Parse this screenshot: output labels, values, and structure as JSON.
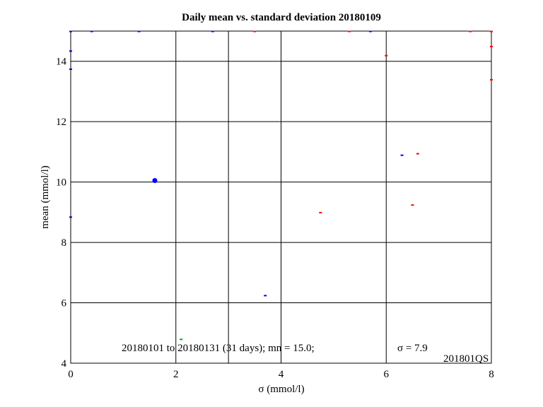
{
  "chart_data": {
    "type": "scatter",
    "title": "Daily mean vs. standard deviation 20180109",
    "xlabel": "σ (mmol/l)",
    "ylabel": "mean (mmol/l)",
    "xlim": [
      0,
      8
    ],
    "ylim": [
      4,
      15
    ],
    "x_ticks": [
      0,
      2,
      4,
      6,
      8
    ],
    "y_ticks": [
      4,
      6,
      8,
      10,
      12,
      14
    ],
    "x_grid": [
      0,
      2,
      3,
      4,
      6,
      8
    ],
    "y_grid": [
      4,
      6,
      8,
      10,
      12,
      14,
      15
    ],
    "grid": true,
    "main_point": {
      "x": 1.6,
      "y": 10.05,
      "color": "#0000ff"
    },
    "markers": [
      {
        "x": 0.0,
        "y": 15.0,
        "color": "#0000ff"
      },
      {
        "x": 0.4,
        "y": 15.0,
        "color": "#0000ff"
      },
      {
        "x": 1.3,
        "y": 15.0,
        "color": "#0000ff"
      },
      {
        "x": 2.7,
        "y": 15.0,
        "color": "#0000ff"
      },
      {
        "x": 3.5,
        "y": 15.0,
        "color": "#ff0000"
      },
      {
        "x": 5.3,
        "y": 15.0,
        "color": "#ff0000"
      },
      {
        "x": 5.7,
        "y": 15.0,
        "color": "#0000ff"
      },
      {
        "x": 7.6,
        "y": 15.0,
        "color": "#ff0000"
      },
      {
        "x": 8.0,
        "y": 15.0,
        "color": "#ff0000"
      },
      {
        "x": 0.0,
        "y": 14.35,
        "color": "#0000ff"
      },
      {
        "x": 0.0,
        "y": 13.75,
        "color": "#0000ff"
      },
      {
        "x": 6.0,
        "y": 14.2,
        "color": "#ff0000"
      },
      {
        "x": 8.0,
        "y": 14.5,
        "color": "#ff0000"
      },
      {
        "x": 8.0,
        "y": 13.4,
        "color": "#ff0000"
      },
      {
        "x": 6.6,
        "y": 10.95,
        "color": "#ff0000"
      },
      {
        "x": 6.3,
        "y": 10.9,
        "color": "#0000ff"
      },
      {
        "x": 6.5,
        "y": 9.25,
        "color": "#ff0000"
      },
      {
        "x": 4.75,
        "y": 9.0,
        "color": "#ff0000"
      },
      {
        "x": 0.0,
        "y": 8.85,
        "color": "#0000ff"
      },
      {
        "x": 3.7,
        "y": 6.25,
        "color": "#0000ff"
      },
      {
        "x": 2.1,
        "y": 4.8,
        "color": "#00aa00"
      }
    ],
    "annotations": {
      "range": "20180101 to 20180131 (31 days); mn = 15.0;",
      "sigma": "σ = 7.9",
      "code": "201801QS"
    }
  }
}
